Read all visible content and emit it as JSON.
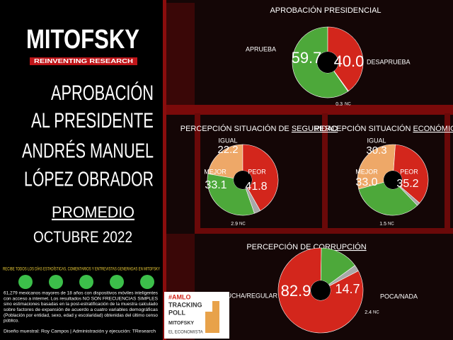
{
  "header": {
    "logo": "MITOFSKY",
    "tagline": "REINVENTING RESEARCH",
    "title_lines": [
      "APROBACIÓN",
      "AL PRESIDENTE",
      "ANDRÉS MANUEL",
      "LÓPEZ OBRADOR"
    ],
    "period_lines": [
      "PROMEDIO",
      "OCTUBRE 2022"
    ]
  },
  "footer": {
    "banner": "RECIBE TODOS LOS DÍAS ESTADÍSTICAS, COMENTARIOS Y ENTREVISTAS GENERADAS EN MITOFSKY",
    "method_lines": [
      "61,279 mexicanos mayores de 18 años con dispositivos móviles inteligentes",
      "con acceso a internet. Los resultados NO SON FRECUENCIAS SIMPLES",
      "sino estimaciones basadas en la post-estratificación de la muestra calculado",
      "sobre factores de expansión de acuerdo a cuatro variables demográficas",
      "(Población por entidad, sexo, edad y escolaridad) obtenidas del último censo",
      "público."
    ],
    "credits": "Diseño muestral: Roy Campos | Administración y ejecución: TResearch",
    "poll_box": [
      "#AMLO",
      "TRACKING",
      "POLL",
      "MITOFSKY",
      "EL ECONOMISTA"
    ]
  },
  "chart_data": [
    {
      "type": "donut",
      "title": "APROBACIÓN PRESIDENCIAL",
      "categories": [
        "APRUEBA",
        "DESAPRUEBA",
        "NC"
      ],
      "values": [
        59.7,
        40.0,
        0.3
      ],
      "value_labels": [
        "59.7",
        "40.0",
        "0.3"
      ],
      "colors": [
        "#4da83a",
        "#d3261c",
        "#a8a8a8"
      ]
    },
    {
      "type": "donut",
      "title": "PERCEPCIÓN SITUACIÓN DE",
      "title_emphasis": "SEGURIDAD",
      "categories": [
        "IGUAL",
        "PEOR",
        "NC",
        "MEJOR"
      ],
      "values": [
        22.2,
        41.8,
        2.9,
        33.1
      ],
      "value_labels": [
        "22.2",
        "41.8",
        "2.9",
        "33.1"
      ],
      "colors": [
        "#eea868",
        "#d3261c",
        "#a8a8a8",
        "#4da83a"
      ]
    },
    {
      "type": "donut",
      "title": "PERCEPCIÓN SITUACIÓN",
      "title_emphasis": "ECONÓMICA",
      "categories": [
        "IGUAL",
        "PEOR",
        "NC",
        "MEJOR"
      ],
      "values": [
        30.3,
        35.2,
        1.5,
        33.0
      ],
      "value_labels": [
        "30.3",
        "35.2",
        "1.5",
        "33.0"
      ],
      "colors": [
        "#eea868",
        "#d3261c",
        "#a8a8a8",
        "#4da83a"
      ]
    },
    {
      "type": "donut",
      "title": "PERCEPCIÓN DE",
      "title_emphasis": "CORRUPCIÓN",
      "categories": [
        "MUCHA/REGULAR",
        "POCA/NADA",
        "NC"
      ],
      "values": [
        82.9,
        14.7,
        2.4
      ],
      "value_labels": [
        "82.9",
        "14.7",
        "2.4"
      ],
      "colors": [
        "#d3261c",
        "#4da83a",
        "#a8a8a8"
      ]
    }
  ]
}
